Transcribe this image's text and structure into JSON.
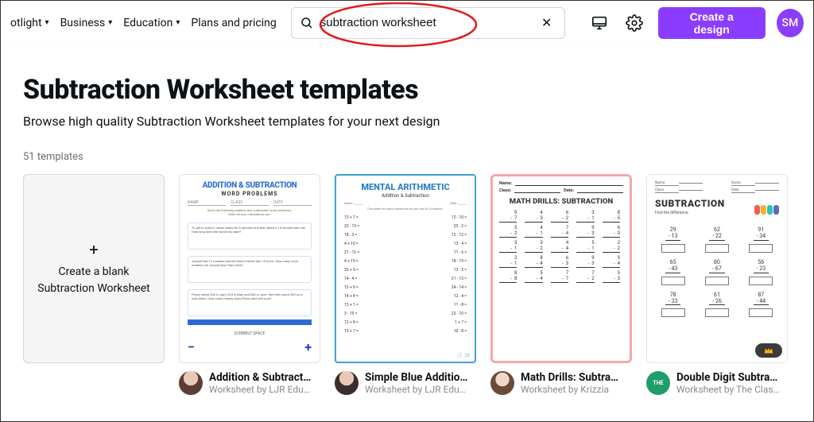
{
  "header": {
    "nav": [
      "otlight",
      "Business",
      "Education",
      "Plans and pricing"
    ],
    "search_value": "subtraction worksheet",
    "create_label": "Create a design",
    "avatar_initials": "SM",
    "accent_color": "#8b3dff"
  },
  "page": {
    "title": "Subtraction Worksheet templates",
    "subtitle": "Browse high quality Subtraction Worksheet templates for your next design",
    "count_text": "51 templates"
  },
  "create_blank": {
    "label": "Create a blank Subtraction Worksheet"
  },
  "templates": [
    {
      "title": "Addition & Subtract…",
      "byline": "Worksheet by LJR Edu…",
      "thumb": {
        "heading": "ADDITION & SUBTRACTION",
        "subheading": "WORD PROBLEMS",
        "scribble": "SCRIBBLE SPACE"
      },
      "author_color": "#d9c0b0"
    },
    {
      "title": "Simple Blue Additio…",
      "byline": "Worksheet by LJR Edu…",
      "thumb": {
        "heading": "MENTAL ARITHMETIC",
        "subheading": "Addition & Subtraction",
        "border_color": "#3aa0d8",
        "page": "28",
        "rows": [
          [
            "13 + 7 =",
            "12 - 10 ="
          ],
          [
            "22 - 13 =",
            "23 - 2 ="
          ],
          [
            "18 - 3 =",
            "12 - 12 ="
          ],
          [
            "4 + 10 =",
            "13 - 4 ="
          ],
          [
            "21 - 12 =",
            "11 - 6 ="
          ],
          [
            "4 + 19 =",
            "18 - 19 ="
          ],
          [
            "32 + 5 =",
            "13 - 5 ="
          ],
          [
            "14 - 4 =",
            "21 - 13 ="
          ],
          [
            "12 + 9 =",
            "24 - 14 ="
          ],
          [
            "14 + 4 =",
            "12 - 4 ="
          ],
          [
            "13 + 1 =",
            "11 - 8 ="
          ],
          [
            "3 - 19 =",
            "22 - 10 ="
          ],
          [
            "12 + 8 =",
            "1 + 7 ="
          ],
          [
            "13 + 7 =",
            "10 - 8 ="
          ]
        ]
      },
      "author_color": "#d9c0b0"
    },
    {
      "title": "Math Drills: Subtra…",
      "byline": "Worksheet by Krizzia",
      "thumb": {
        "border_color": "#f4a9a5",
        "heading": "MATH DRILLS: SUBTRACTION",
        "name_label": "Name:",
        "class_label": "Class:",
        "date_label": "Date:",
        "problems": [
          [
            9,
            7
          ],
          [
            4,
            3
          ],
          [
            6,
            2
          ],
          [
            3,
            1
          ],
          [
            8,
            5
          ],
          [
            5,
            2
          ],
          [
            4,
            1
          ],
          [
            7,
            4
          ],
          [
            9,
            3
          ],
          [
            6,
            0
          ],
          [
            3,
            1
          ],
          [
            3,
            2
          ],
          [
            4,
            4
          ],
          [
            5,
            1
          ],
          [
            2,
            2
          ],
          [
            2,
            1
          ],
          [
            8,
            4
          ],
          [
            6,
            3
          ],
          [
            9,
            3
          ],
          [
            9,
            4
          ],
          [
            8,
            8
          ],
          [
            5,
            4
          ],
          [
            7,
            7
          ],
          [
            7,
            2
          ],
          [
            5,
            3
          ]
        ]
      },
      "author_color": "#7cc68f"
    },
    {
      "title": "Double Digit Subtra…",
      "byline": "Worksheet by The Clas…",
      "thumb": {
        "heading": "SUBTRACTION",
        "subheading": "Find the difference.",
        "name_label": "Name:",
        "score_label": "Score:",
        "class_label": "Class:",
        "date_label": "Date:",
        "kids_colors": [
          "#f25c54",
          "#f7b32b",
          "#2ec4b6",
          "#5c6bc0"
        ],
        "problems": [
          [
            29,
            13
          ],
          [
            62,
            22
          ],
          [
            91,
            34
          ],
          [
            65,
            43
          ],
          [
            80,
            67
          ],
          [
            56,
            23
          ],
          [
            78,
            33
          ],
          [
            61,
            26
          ],
          [
            87,
            44
          ]
        ]
      },
      "author_color": "#1e9e6a",
      "premium": true
    }
  ],
  "annotation": {
    "circle_color": "#e11b1b"
  }
}
